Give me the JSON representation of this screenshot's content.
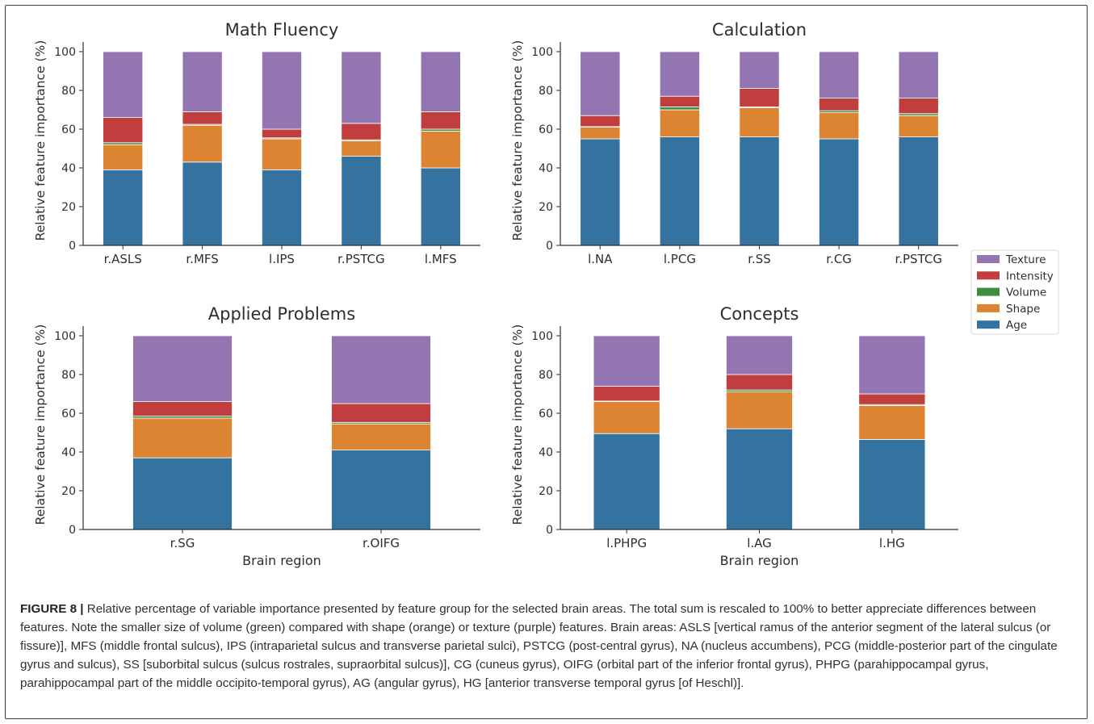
{
  "chart_data": [
    {
      "type": "bar",
      "stacked": true,
      "title": "Math Fluency",
      "xlabel": "",
      "ylabel": "Relative feature importance (%)",
      "ylim": [
        0,
        100
      ],
      "yticks": [
        0,
        20,
        40,
        60,
        80,
        100
      ],
      "grid": false,
      "categories": [
        "r.ASLS",
        "r.MFS",
        "l.IPS",
        "r.PSTCG",
        "l.MFS"
      ],
      "series": [
        {
          "name": "Age",
          "values": [
            39,
            43,
            39,
            46,
            40
          ]
        },
        {
          "name": "Shape",
          "values": [
            13,
            19,
            16,
            8,
            19
          ]
        },
        {
          "name": "Volume",
          "values": [
            1,
            0.5,
            0.5,
            0.5,
            1
          ]
        },
        {
          "name": "Intensity",
          "values": [
            13,
            6.5,
            4.5,
            8.5,
            9
          ]
        },
        {
          "name": "Texture",
          "values": [
            34,
            31,
            40,
            37,
            31
          ]
        }
      ]
    },
    {
      "type": "bar",
      "stacked": true,
      "title": "Calculation",
      "xlabel": "",
      "ylabel": "Relative feature importance (%)",
      "ylim": [
        0,
        100
      ],
      "yticks": [
        0,
        20,
        40,
        60,
        80,
        100
      ],
      "grid": false,
      "categories": [
        "l.NA",
        "l.PCG",
        "r.SS",
        "r.CG",
        "r.PSTCG"
      ],
      "series": [
        {
          "name": "Age",
          "values": [
            55,
            56,
            56,
            55,
            56
          ]
        },
        {
          "name": "Shape",
          "values": [
            6,
            14,
            15,
            13.5,
            11
          ]
        },
        {
          "name": "Volume",
          "values": [
            0.3,
            1.5,
            0.5,
            1,
            1
          ]
        },
        {
          "name": "Intensity",
          "values": [
            5.7,
            5.5,
            9.5,
            6.5,
            8
          ]
        },
        {
          "name": "Texture",
          "values": [
            33,
            23,
            19,
            24,
            24
          ]
        }
      ]
    },
    {
      "type": "bar",
      "stacked": true,
      "title": "Applied Problems",
      "xlabel": "Brain region",
      "ylabel": "Relative feature importance (%)",
      "ylim": [
        0,
        100
      ],
      "yticks": [
        0,
        20,
        40,
        60,
        80,
        100
      ],
      "grid": false,
      "categories": [
        "r.SG",
        "r.OIFG"
      ],
      "series": [
        {
          "name": "Age",
          "values": [
            37,
            41
          ]
        },
        {
          "name": "Shape",
          "values": [
            20.5,
            13.5
          ]
        },
        {
          "name": "Volume",
          "values": [
            1,
            0.8
          ]
        },
        {
          "name": "Intensity",
          "values": [
            7.5,
            9.7
          ]
        },
        {
          "name": "Texture",
          "values": [
            34,
            35
          ]
        }
      ]
    },
    {
      "type": "bar",
      "stacked": true,
      "title": "Concepts",
      "xlabel": "Brain region",
      "ylabel": "Relative feature importance (%)",
      "ylim": [
        0,
        100
      ],
      "yticks": [
        0,
        20,
        40,
        60,
        80,
        100
      ],
      "grid": false,
      "categories": [
        "l.PHPG",
        "l.AG",
        "l.HG"
      ],
      "series": [
        {
          "name": "Age",
          "values": [
            49.5,
            52,
            46.5
          ]
        },
        {
          "name": "Shape",
          "values": [
            16.5,
            19,
            17.5
          ]
        },
        {
          "name": "Volume",
          "values": [
            0.3,
            1,
            0.5
          ]
        },
        {
          "name": "Intensity",
          "values": [
            7.7,
            8,
            5.5
          ]
        },
        {
          "name": "Texture",
          "values": [
            26,
            20,
            30
          ]
        }
      ]
    }
  ],
  "legend": {
    "placement": "right",
    "items": [
      {
        "label": "Texture",
        "color": "#9376b1"
      },
      {
        "label": "Intensity",
        "color": "#c13e3e"
      },
      {
        "label": "Volume",
        "color": "#3c8f3c"
      },
      {
        "label": "Shape",
        "color": "#dd8432"
      },
      {
        "label": "Age",
        "color": "#34729f"
      }
    ]
  },
  "series_colors": {
    "Age": "#34729f",
    "Shape": "#dd8432",
    "Volume": "#3c8f3c",
    "Intensity": "#c13e3e",
    "Texture": "#9376b1"
  },
  "caption": {
    "label": "FIGURE 8 |",
    "text": " Relative percentage of variable importance presented by feature group for the selected brain areas. The total sum is rescaled to 100% to better appreciate differences between features. Note the smaller size of volume (green) compared with shape (orange) or texture (purple) features. Brain areas: ASLS [vertical ramus of the anterior segment of the lateral sulcus (or fissure)], MFS (middle frontal sulcus), IPS (intraparietal sulcus and transverse parietal sulci), PSTCG (post-central gyrus), NA (nucleus accumbens), PCG (middle-posterior part of the cingulate gyrus and sulcus), SS [suborbital sulcus (sulcus rostrales, supraorbital sulcus)], CG (cuneus gyrus), OIFG (orbital part of the inferior frontal gyrus), PHPG (parahippocampal gyrus, parahippocampal part of the middle occipito-temporal gyrus), AG (angular gyrus), HG [anterior transverse temporal gyrus [of Heschl)]."
  }
}
